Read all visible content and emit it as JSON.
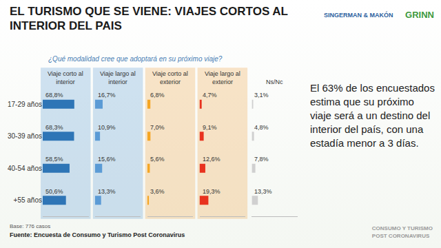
{
  "title": "EL TURISMO QUE SE VIENE: VIAJES CORTOS AL INTERIOR DEL PAIS",
  "subtitle": "¿Qué modalidad cree que adoptará en su próximo viaje?",
  "highlight": "El 63% de los encuestados estima que su próximo viaje será a un destino del interior del país, con una estadía menor a 3 días.",
  "base_note": "Base: 776 casos",
  "source": "Fuente: Encuesta de Consumo y Turismo Post Coronavirus",
  "logos": [
    "SINGERMAN & MAKÓN",
    "GRINN"
  ],
  "footer": [
    "CONSUMO Y TURISMO",
    "POST CORONAVIRUS"
  ],
  "chart_data": {
    "type": "bar",
    "orientation": "horizontal",
    "categories": [
      "17-29 años",
      "30-39 años",
      "40-54 años",
      "+55 años"
    ],
    "xlim": [
      0,
      100
    ],
    "tick_labels": "y",
    "data_labels": true,
    "series": [
      {
        "name": "Viaje corto al interior",
        "color": "#2e75b6",
        "values": [
          68.8,
          68.3,
          58.5,
          50.6
        ],
        "value_labels": [
          "68,8%",
          "68,3%",
          "58,5%",
          "50,6%"
        ]
      },
      {
        "name": "Viaje largo al interior",
        "color": "#5b9bd5",
        "values": [
          16.7,
          10.9,
          15.6,
          13.3
        ],
        "value_labels": [
          "16,7%",
          "10,9%",
          "15,6%",
          "13,3%"
        ]
      },
      {
        "name": "Viaje corto al exterior",
        "color": "#f5a623",
        "values": [
          6.8,
          7.0,
          5.6,
          3.6
        ],
        "value_labels": [
          "6,8%",
          "7,0%",
          "5,6%",
          "3,6%"
        ]
      },
      {
        "name": "Viaje largo al exterior",
        "color": "#e8321e",
        "values": [
          4.7,
          9.1,
          12.6,
          19.3
        ],
        "value_labels": [
          "4,7%",
          "9,1%",
          "12,6%",
          "19,3%"
        ]
      },
      {
        "name": "Ns/Nc",
        "color": "#d0d0d0",
        "values": [
          3.1,
          4.8,
          7.8,
          13.3
        ],
        "value_labels": [
          "3,1%",
          "4,8%",
          "7,8%",
          "13,3%"
        ]
      }
    ]
  }
}
